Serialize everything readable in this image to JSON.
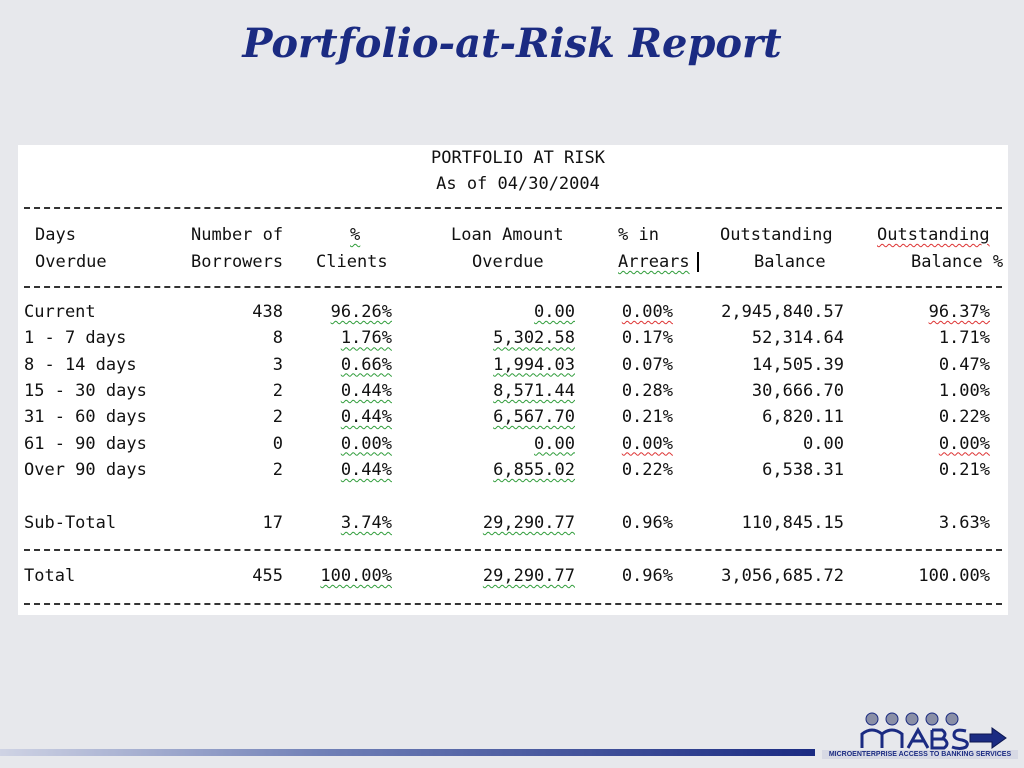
{
  "slide": {
    "title": "Portfolio-at-Risk Report"
  },
  "report": {
    "heading": "PORTFOLIO AT RISK",
    "as_of": "As of 04/30/2004",
    "columns": [
      [
        "Days",
        "Overdue"
      ],
      [
        "Number of",
        "Borrowers"
      ],
      [
        "%",
        "Clients"
      ],
      [
        "Loan Amount",
        "Overdue"
      ],
      [
        "% in",
        "Arrears"
      ],
      [
        "Outstanding",
        "Balance"
      ],
      [
        "Outstanding",
        "Balance %"
      ]
    ],
    "rows": [
      [
        "Current",
        "438",
        "96.26%",
        "0.00",
        "0.00%",
        "2,945,840.57",
        "96.37%"
      ],
      [
        "1  -  7 days",
        "8",
        "1.76%",
        "5,302.58",
        "0.17%",
        "52,314.64",
        "1.71%"
      ],
      [
        "8  - 14 days",
        "3",
        "0.66%",
        "1,994.03",
        "0.07%",
        "14,505.39",
        "0.47%"
      ],
      [
        "15 - 30 days",
        "2",
        "0.44%",
        "8,571.44",
        "0.28%",
        "30,666.70",
        "1.00%"
      ],
      [
        "31 - 60 days",
        "2",
        "0.44%",
        "6,567.70",
        "0.21%",
        "6,820.11",
        "0.22%"
      ],
      [
        "61 - 90 days",
        "0",
        "0.00%",
        "0.00",
        "0.00%",
        "0.00",
        "0.00%"
      ],
      [
        "Over 90 days",
        "2",
        "0.44%",
        "6,855.02",
        "0.22%",
        "6,538.31",
        "0.21%"
      ]
    ],
    "subtotal": [
      "Sub-Total",
      "17",
      "3.74%",
      "29,290.77",
      "0.96%",
      "110,845.15",
      "3.63%"
    ],
    "total": [
      "Total",
      "455",
      "100.00%",
      "29,290.77",
      "0.96%",
      "3,056,685.72",
      "100.00%"
    ]
  },
  "logo": {
    "name": "MABS",
    "tagline": "MICROENTERPRISE ACCESS TO BANKING SERVICES",
    "arrow_icon": "right-arrow-icon",
    "colors": {
      "primary": "#1b2b82",
      "accent": "#8a8fa6"
    }
  }
}
